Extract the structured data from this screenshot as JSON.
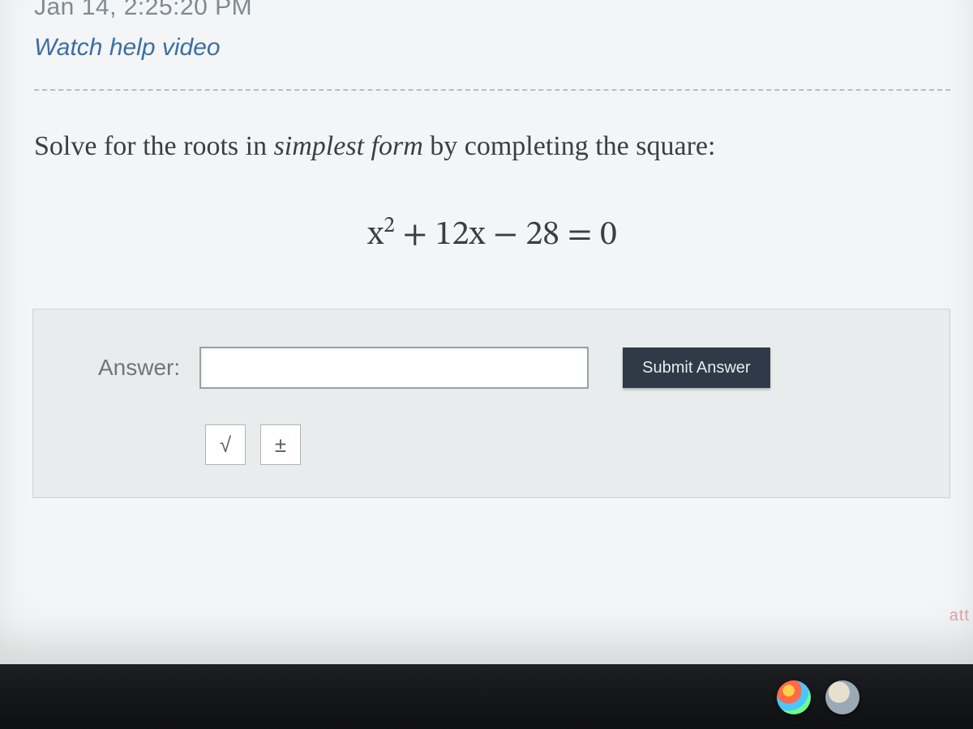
{
  "timestamp": "Jan 14, 2:25:20 PM",
  "help_link": "Watch help video",
  "prompt": {
    "pre": "Solve for the roots in ",
    "em": "simplest form",
    "post": " by completing the square:"
  },
  "equation": {
    "var": "x",
    "exp": "2",
    "rest": " + 12x − 28 = 0"
  },
  "answer": {
    "label": "Answer:",
    "value": "",
    "submit": "Submit Answer",
    "tools": {
      "sqrt": "√",
      "plusminus": "±"
    }
  },
  "badge": "att",
  "colors": {
    "page_bg": "#f4f5f6",
    "panel_bg": "#e9eced",
    "panel_border": "#d0d3d5",
    "text": "#3b3f42",
    "muted": "#7d8a94",
    "link": "#3a6fa5",
    "button_bg": "#2e3a47",
    "button_text": "#e8ecef",
    "divider": "#b8bcc0"
  }
}
